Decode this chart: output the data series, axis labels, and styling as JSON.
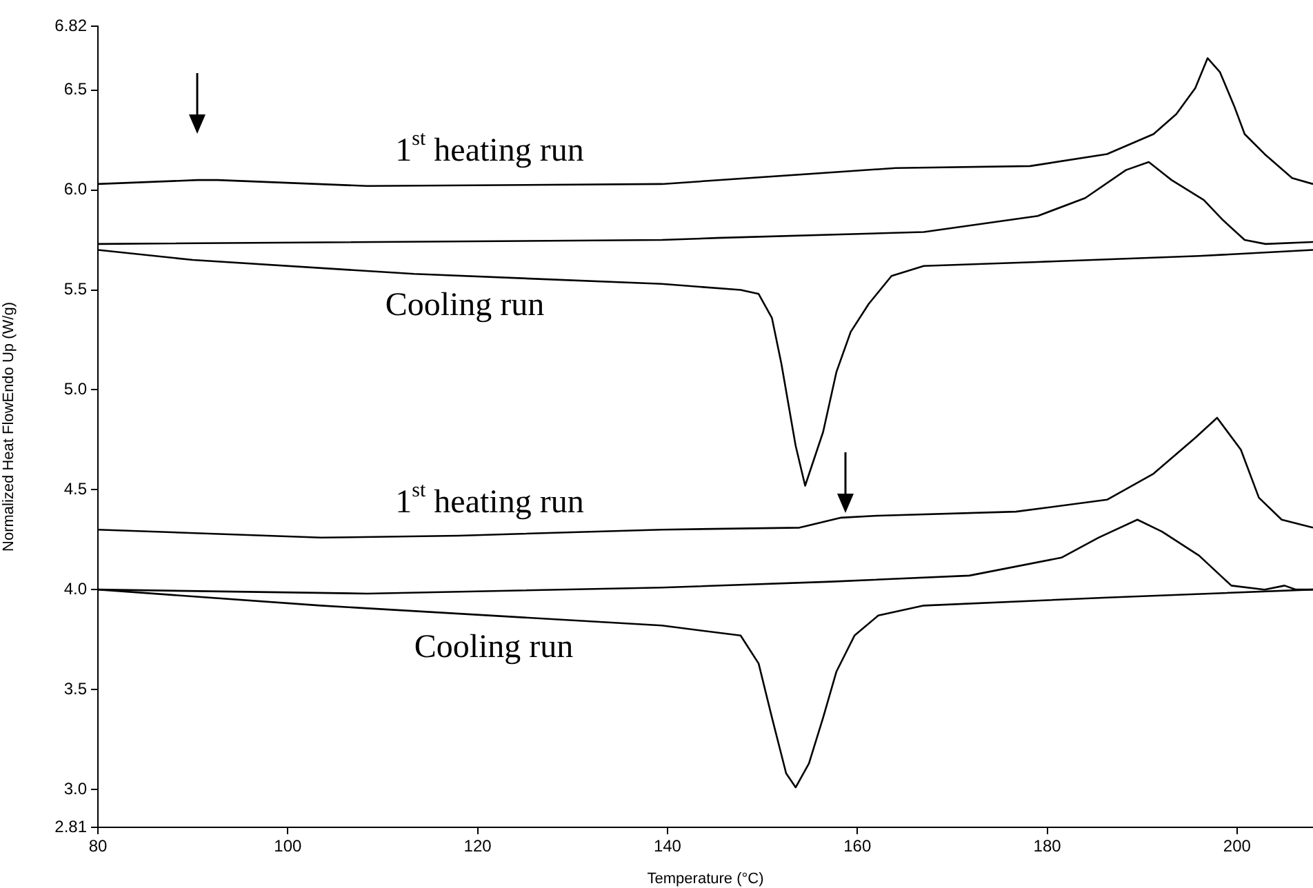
{
  "chart_data": {
    "type": "line",
    "xlabel": "Temperature (°C)",
    "ylabel": "Normalized Heat FlowEndo Up (W/g)",
    "xlim": [
      80,
      208
    ],
    "xticks": [
      80,
      100,
      120,
      140,
      160,
      180,
      200
    ],
    "ylim": [
      2.81,
      6.82
    ],
    "yticks": [
      2.81,
      {
        "value": 3,
        "label": "3.0"
      },
      3.5,
      {
        "value": 4,
        "label": "4.0"
      },
      4.5,
      {
        "value": 5,
        "label": "5.0"
      },
      5.5,
      {
        "value": 6,
        "label": "6.0"
      },
      6.5,
      6.82
    ],
    "grid": false,
    "legend": false,
    "marker": "none",
    "line_style": "solid",
    "series": [
      {
        "color": "#000000",
        "x": [
          80,
          90.5,
          92.6,
          108.4,
          139.4,
          164,
          178.2,
          186.3,
          191.2,
          193.6,
          195.6,
          196.9,
          198.2,
          199.7,
          200.8,
          202.9,
          205.8,
          208
        ],
        "values": [
          6.03,
          6.05,
          6.05,
          6.02,
          6.03,
          6.11,
          6.12,
          6.18,
          6.28,
          6.38,
          6.51,
          6.66,
          6.59,
          6.42,
          6.28,
          6.18,
          6.06,
          6.03
        ]
      },
      {
        "color": "#000000",
        "x": [
          80,
          139.4,
          145.2,
          167,
          179,
          184,
          188.3,
          190.7,
          193.1,
          196.5,
          198.5,
          200.8,
          203,
          208
        ],
        "values": [
          5.73,
          5.75,
          5.76,
          5.79,
          5.87,
          5.96,
          6.1,
          6.14,
          6.05,
          5.95,
          5.85,
          5.75,
          5.73,
          5.74
        ]
      },
      {
        "color": "#000000",
        "x": [
          80,
          90,
          113.3,
          139.4,
          147.7,
          149.6,
          151,
          152,
          153.5,
          154.5,
          156.4,
          157.8,
          159.3,
          161.2,
          163.6,
          167,
          179,
          196,
          208
        ],
        "values": [
          5.7,
          5.65,
          5.58,
          5.53,
          5.5,
          5.48,
          5.36,
          5.13,
          4.72,
          4.52,
          4.79,
          5.09,
          5.29,
          5.43,
          5.57,
          5.62,
          5.64,
          5.67,
          5.7
        ]
      },
      {
        "color": "#000000",
        "x": [
          80,
          103.5,
          118,
          139.4,
          153.9,
          158.3,
          162.2,
          176.7,
          186.3,
          191.2,
          195.6,
          197.9,
          200.4,
          202.3,
          204.7,
          208
        ],
        "values": [
          4.3,
          4.26,
          4.27,
          4.3,
          4.31,
          4.36,
          4.37,
          4.39,
          4.45,
          4.58,
          4.76,
          4.86,
          4.7,
          4.46,
          4.35,
          4.31
        ]
      },
      {
        "color": "#000000",
        "x": [
          80,
          108.4,
          139.4,
          157.3,
          171.8,
          181.5,
          185.4,
          189.5,
          192.1,
          196,
          199.4,
          202.9,
          205,
          206.2,
          208
        ],
        "values": [
          4,
          3.98,
          4.01,
          4.04,
          4.07,
          4.16,
          4.26,
          4.35,
          4.29,
          4.17,
          4.02,
          4,
          4.02,
          4,
          4
        ]
      },
      {
        "color": "#000000",
        "x": [
          80,
          103.5,
          139.4,
          147.7,
          149.6,
          151,
          152.5,
          153.5,
          154.9,
          156.4,
          157.8,
          159.7,
          162.2,
          167,
          186.3,
          208
        ],
        "values": [
          4,
          3.92,
          3.82,
          3.77,
          3.63,
          3.36,
          3.08,
          3.01,
          3.13,
          3.36,
          3.59,
          3.77,
          3.87,
          3.92,
          3.96,
          4
        ]
      }
    ],
    "annotations": [
      "1$^{st}$ heating run",
      "Cooling run",
      "1$^{st}$ heating run",
      "Cooling run"
    ]
  }
}
